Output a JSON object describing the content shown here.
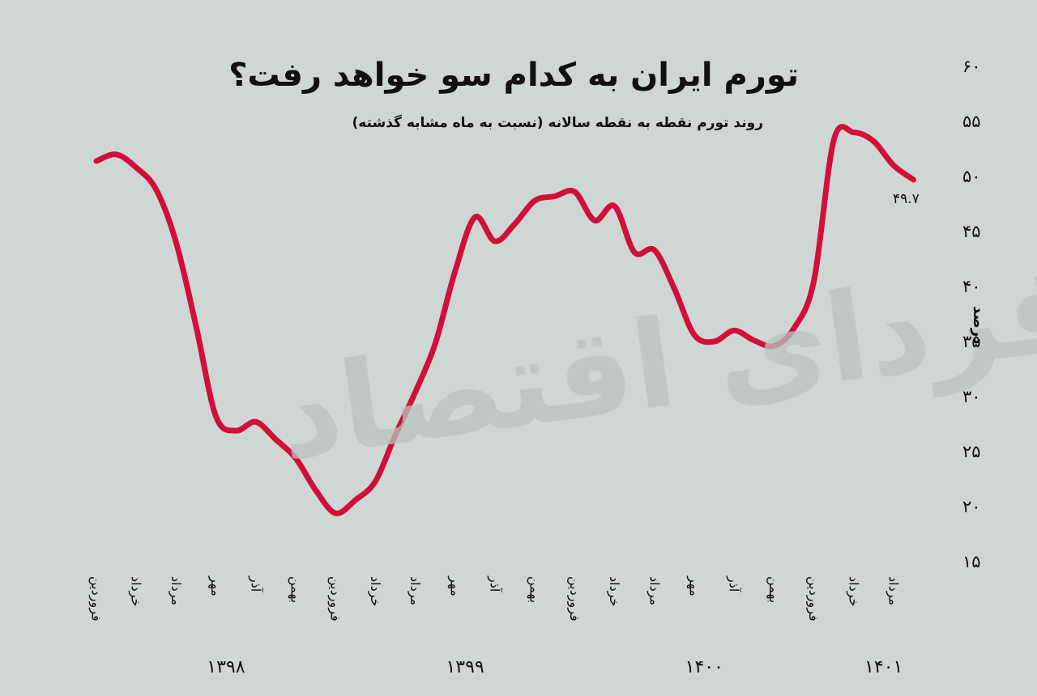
{
  "chart_data": {
    "type": "line",
    "title": "تورم ایران به کدام سو خواهد رفت؟",
    "subtitle": "روند تورم نقطه به نقطه سالانه (نسبت به ماه مشابه گذشته)",
    "ylabel": "درصد",
    "ylim": [
      15,
      60
    ],
    "yticks": [
      15,
      20,
      25,
      30,
      35,
      40,
      45,
      50,
      55,
      60
    ],
    "ytick_labels": [
      "۱۵",
      "۲۰",
      "۲۵",
      "۳۰",
      "۳۵",
      "۴۰",
      "۴۵",
      "۵۰",
      "۵۵",
      "۶۰"
    ],
    "x_tick_labels": [
      {
        "label": "فروردین",
        "month": 0
      },
      {
        "label": "خرداد",
        "month": 2
      },
      {
        "label": "مرداد",
        "month": 4
      },
      {
        "label": "مهر",
        "month": 6
      },
      {
        "label": "آذر",
        "month": 8
      },
      {
        "label": "بهمن",
        "month": 10
      },
      {
        "label": "فروردین",
        "month": 12
      },
      {
        "label": "خرداد",
        "month": 14
      },
      {
        "label": "مرداد",
        "month": 16
      },
      {
        "label": "مهر",
        "month": 18
      },
      {
        "label": "آذر",
        "month": 20
      },
      {
        "label": "بهمن",
        "month": 22
      },
      {
        "label": "فروردین",
        "month": 24
      },
      {
        "label": "خرداد",
        "month": 26
      },
      {
        "label": "مرداد",
        "month": 28
      },
      {
        "label": "مهر",
        "month": 30
      },
      {
        "label": "آذر",
        "month": 32
      },
      {
        "label": "بهمن",
        "month": 34
      },
      {
        "label": "فروردین",
        "month": 36
      },
      {
        "label": "خرداد",
        "month": 38
      },
      {
        "label": "مرداد",
        "month": 40
      }
    ],
    "years": [
      {
        "label": "۱۳۹۸",
        "month": 6.5
      },
      {
        "label": "۱۳۹۹",
        "month": 18.5
      },
      {
        "label": "۱۴۰۰",
        "month": 30.5
      },
      {
        "label": "۱۴۰۱",
        "month": 39.5
      }
    ],
    "series": [
      {
        "name": "",
        "color": "#d0103a",
        "x": [
          0,
          1,
          2,
          3,
          4,
          5,
          6,
          7,
          8,
          9,
          10,
          11,
          12,
          13,
          14,
          15,
          16,
          17,
          18,
          19,
          20,
          21,
          22,
          23,
          24,
          25,
          26,
          27,
          28,
          29,
          30,
          31,
          32,
          33,
          34,
          35,
          36,
          37,
          38,
          39,
          40,
          41
        ],
        "y": [
          51.4,
          52.0,
          50.8,
          48.8,
          44.0,
          36.4,
          28.2,
          26.9,
          27.7,
          26.1,
          24.4,
          21.5,
          19.4,
          20.6,
          22.3,
          26.5,
          30.4,
          34.8,
          41.4,
          46.3,
          44.1,
          45.7,
          47.8,
          48.2,
          48.6,
          46.0,
          47.3,
          43.1,
          43.3,
          39.8,
          35.6,
          35.0,
          36.0,
          35.1,
          34.6,
          36.2,
          40.5,
          53.3,
          54.0,
          53.2,
          51.0,
          49.7
        ]
      }
    ],
    "last_value_label": "۴۹.۷",
    "grid": false,
    "legend": "none"
  },
  "watermark": "فردای اقتصاد"
}
